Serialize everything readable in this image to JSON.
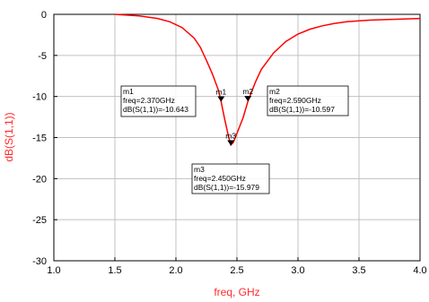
{
  "colors": {
    "trace": "#ff0000",
    "axis_title": "#ff2a2a",
    "grid": "#c0c0c0",
    "frame": "#000000",
    "marker": "#000000"
  },
  "chart_data": {
    "type": "line",
    "xlabel": "freq, GHz",
    "ylabel": "dB(S(1,1))",
    "xlim": [
      1.0,
      4.0
    ],
    "ylim": [
      -30,
      0
    ],
    "x_ticks": [
      "1.0",
      "1.5",
      "2.0",
      "2.5",
      "3.0",
      "3.5",
      "4.0"
    ],
    "y_ticks": [
      "0",
      "-5",
      "-10",
      "-15",
      "-20",
      "-25",
      "-30"
    ],
    "grid": true,
    "series": [
      {
        "x": [
          1.5,
          1.7,
          1.85,
          1.95,
          2.05,
          2.15,
          2.2,
          2.25,
          2.3,
          2.35,
          2.37,
          2.4,
          2.43,
          2.45,
          2.47,
          2.5,
          2.55,
          2.59,
          2.65,
          2.7,
          2.8,
          2.9,
          3.0,
          3.1,
          3.2,
          3.3,
          3.4,
          3.5,
          3.6,
          3.8,
          4.0
        ],
        "y": [
          0.0,
          -0.2,
          -0.5,
          -0.9,
          -1.6,
          -2.9,
          -4.0,
          -5.6,
          -7.3,
          -9.3,
          -10.6,
          -12.8,
          -14.8,
          -15.9,
          -15.6,
          -14.5,
          -12.6,
          -10.6,
          -8.3,
          -6.7,
          -4.7,
          -3.3,
          -2.4,
          -1.8,
          -1.4,
          -1.1,
          -0.9,
          -0.8,
          -0.7,
          -0.6,
          -0.5
        ]
      }
    ],
    "markers": [
      {
        "id": "m1",
        "x": 2.37,
        "y": -10.643,
        "lines": [
          "m1",
          "freq=2.370GHz",
          "dB(S(1,1))=-10.643"
        ]
      },
      {
        "id": "m2",
        "x": 2.59,
        "y": -10.597,
        "lines": [
          "m2",
          "freq=2.590GHz",
          "dB(S(1,1))=-10.597"
        ]
      },
      {
        "id": "m3",
        "x": 2.45,
        "y": -15.979,
        "lines": [
          "m3",
          "freq=2.450GHz",
          "dB(S(1,1))=-15.979"
        ]
      }
    ]
  }
}
